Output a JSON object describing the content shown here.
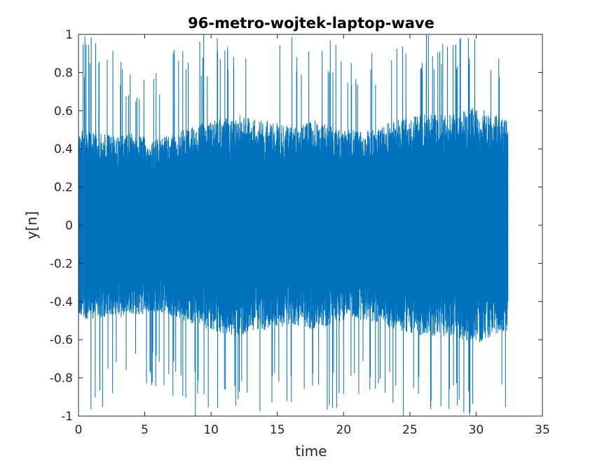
{
  "chart_data": {
    "type": "line",
    "title": "96-metro-wojtek-laptop-wave",
    "xlabel": "time",
    "ylabel": "y[n]",
    "xlim": [
      0,
      35
    ],
    "ylim": [
      -1,
      1
    ],
    "xticks": [
      0,
      5,
      10,
      15,
      20,
      25,
      30,
      35
    ],
    "yticks": [
      -1,
      -0.8,
      -0.6,
      -0.4,
      -0.2,
      0,
      0.2,
      0.4,
      0.6,
      0.8,
      1
    ],
    "xtick_labels": [
      "0",
      "5",
      "10",
      "15",
      "20",
      "25",
      "30",
      "35"
    ],
    "ytick_labels": [
      "-1",
      "-0.8",
      "-0.6",
      "-0.4",
      "-0.2",
      "0",
      "0.2",
      "0.4",
      "0.6",
      "0.8",
      "1"
    ],
    "grid": false,
    "series": [
      {
        "color": "#0072BD",
        "x_start": 0,
        "x_end": 32.4,
        "envelope": {
          "x": [
            0,
            2,
            4,
            6,
            8,
            10,
            12,
            14,
            16,
            18,
            20,
            22,
            24,
            26,
            28,
            30,
            32.4
          ],
          "typical_amplitude": [
            0.5,
            0.48,
            0.48,
            0.45,
            0.5,
            0.55,
            0.58,
            0.55,
            0.52,
            0.55,
            0.5,
            0.5,
            0.55,
            0.58,
            0.58,
            0.62,
            0.55
          ],
          "peak_amplitude": [
            1.0,
            1.0,
            0.8,
            0.85,
            1.0,
            1.0,
            1.0,
            1.0,
            1.0,
            1.0,
            0.95,
            0.9,
            1.0,
            1.0,
            1.0,
            1.0,
            0.95
          ]
        }
      }
    ]
  }
}
